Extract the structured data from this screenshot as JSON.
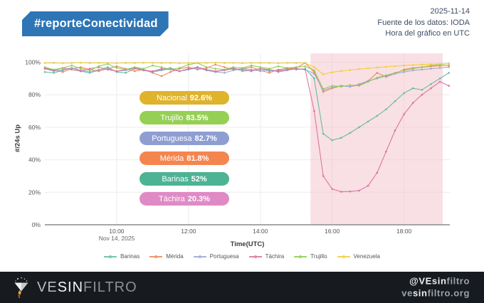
{
  "header": {
    "badge": "#reporteConectividad",
    "date": "2025-11-14",
    "source": "Fuente de los datos: IODA",
    "timezone_note": "Hora del gráfico en UTC"
  },
  "chart": {
    "y_axis_label": "#/24s Up",
    "x_axis_label": "Time(UTC)",
    "x_axis_date": "Nov 14, 2025",
    "y_ticks": [
      "0%",
      "20%",
      "40%",
      "60%",
      "80%",
      "100%"
    ],
    "y_tick_values": [
      0,
      20,
      40,
      60,
      80,
      100
    ],
    "pills": [
      {
        "label": "Nacional",
        "value": "92.6%",
        "color": "#dfb32b"
      },
      {
        "label": "Trujillo",
        "value": "83.5%",
        "color": "#95d054"
      },
      {
        "label": "Portuguesa",
        "value": "82.7%",
        "color": "#8f9ed2"
      },
      {
        "label": "Mérida",
        "value": "81.8%",
        "color": "#f5854f"
      },
      {
        "label": "Barinas",
        "value": "52%",
        "color": "#4db394"
      },
      {
        "label": "Táchira",
        "value": "20.3%",
        "color": "#df8ac5"
      }
    ],
    "highlight_band": {
      "from_hour": 15.4,
      "to_hour": 19.08,
      "color": "#f3c1ca",
      "opacity": 0.5
    }
  },
  "chart_data": {
    "type": "line",
    "title": "",
    "xlabel": "Time(UTC)",
    "ylabel": "#/24s Up",
    "ylim": [
      0,
      100
    ],
    "grid": true,
    "legend_position": "bottom",
    "x_unit": "hour of day UTC, Nov 14 2025",
    "x_ticks": [
      10,
      12,
      14,
      16,
      18
    ],
    "x_tick_labels": [
      "10:00",
      "12:00",
      "14:00",
      "16:00",
      "18:00"
    ],
    "x": [
      8,
      8.25,
      8.5,
      8.75,
      9,
      9.25,
      9.5,
      9.75,
      10,
      10.25,
      10.5,
      10.75,
      11,
      11.25,
      11.5,
      11.75,
      12,
      12.25,
      12.5,
      12.75,
      13,
      13.25,
      13.5,
      13.75,
      14,
      14.25,
      14.5,
      14.75,
      15,
      15.25,
      15.5,
      15.75,
      16,
      16.25,
      16.5,
      16.75,
      17,
      17.25,
      17.5,
      17.75,
      18,
      18.25,
      18.5,
      18.75,
      19,
      19.25
    ],
    "series": [
      {
        "name": "Barinas",
        "color": "#60baa6",
        "min_during_incident": 52,
        "values": [
          94,
          93.5,
          95,
          96.5,
          94.5,
          93.5,
          95,
          97,
          94,
          93.5,
          96,
          95,
          94,
          95.5,
          96.5,
          94.5,
          95.5,
          97,
          95,
          94,
          95.5,
          96.5,
          94.5,
          95,
          96,
          94.5,
          95,
          96.5,
          95.5,
          96,
          90,
          56,
          52,
          53.5,
          56.5,
          60,
          63.5,
          67,
          71,
          76,
          81,
          84,
          83,
          86.5,
          90,
          93.5
        ]
      },
      {
        "name": "Mérida",
        "color": "#f0825a",
        "min_during_incident": 81.8,
        "values": [
          96.5,
          95,
          94,
          96,
          97,
          95.5,
          94.5,
          96,
          97.5,
          96,
          94.5,
          95.5,
          93.5,
          91.5,
          94,
          96,
          97,
          95.5,
          96.5,
          98.5,
          97,
          95.5,
          96,
          97,
          95,
          93.5,
          95.5,
          96,
          96.5,
          99.5,
          94,
          81.8,
          84,
          85.5,
          85,
          86,
          88.5,
          93.5,
          91,
          93,
          95.5,
          96.5,
          97,
          97.5,
          97.8,
          98
        ]
      },
      {
        "name": "Portuguesa",
        "color": "#9aa5d6",
        "min_during_incident": 82.7,
        "values": [
          96,
          94.5,
          95.5,
          96.5,
          95,
          94,
          95.5,
          96,
          94.5,
          95,
          96.5,
          95.5,
          94,
          95,
          96,
          94.5,
          95.5,
          96.5,
          95,
          94,
          93.5,
          95,
          96,
          95.5,
          94.5,
          95.5,
          94,
          95,
          96,
          95.5,
          93,
          82.7,
          84.5,
          85.5,
          85,
          86.5,
          88.5,
          90,
          91.5,
          93,
          94,
          95,
          95.5,
          96,
          96.5,
          97
        ]
      },
      {
        "name": "Táchira",
        "color": "#d9709f",
        "min_during_incident": 20.3,
        "values": [
          96,
          95,
          96.5,
          95.5,
          94.5,
          96,
          97,
          95.5,
          94.5,
          95.5,
          96.5,
          95,
          94.5,
          96,
          95.5,
          94.5,
          96,
          97,
          95.5,
          94.5,
          95,
          96,
          95.5,
          94.5,
          96,
          95.5,
          94.5,
          95.5,
          96,
          95.5,
          70,
          30,
          22,
          20.3,
          20.5,
          21,
          24,
          32,
          45,
          58,
          68,
          75,
          80,
          84,
          88,
          85.5
        ]
      },
      {
        "name": "Trujillo",
        "color": "#8ccb4f",
        "min_during_incident": 83.5,
        "values": [
          97,
          95.5,
          96.5,
          98,
          96,
          95,
          97.5,
          99,
          96.5,
          95.5,
          97,
          96,
          98,
          97,
          95.5,
          96.5,
          98.5,
          99.5,
          97,
          96,
          95.5,
          97,
          96.5,
          98,
          97,
          96,
          97.5,
          96.5,
          97,
          97.5,
          95,
          83.5,
          85.5,
          85,
          86,
          85.5,
          88,
          90.5,
          92,
          93.5,
          95,
          96,
          97,
          98,
          98.5,
          99.2
        ]
      },
      {
        "name": "Venezuela",
        "color": "#f2cd30",
        "min_during_incident": 92.6,
        "values": [
          99.5,
          99.6,
          99.4,
          99.5,
          99.7,
          99.5,
          99.6,
          99.5,
          99.4,
          99.6,
          99.5,
          99.7,
          99.6,
          99.5,
          99.6,
          99.4,
          99.5,
          99.6,
          99.5,
          99.7,
          99.5,
          99.6,
          99.4,
          99.5,
          99.6,
          99.5,
          99.4,
          99.6,
          99.5,
          99.5,
          97,
          92.6,
          93.8,
          94.6,
          95.2,
          95.8,
          96.3,
          96.8,
          97.2,
          97.6,
          98,
          98.3,
          98.6,
          98.8,
          99,
          99.1
        ]
      }
    ]
  },
  "footer": {
    "brand": {
      "ve": "VE",
      "sin": "SIN",
      "filtro": "FILTRO"
    },
    "handle": {
      "strong": "@VEsin",
      "muted": "filtro"
    },
    "url": {
      "pre": "ve",
      "strong": "sin",
      "muted": "filtro.org"
    }
  }
}
